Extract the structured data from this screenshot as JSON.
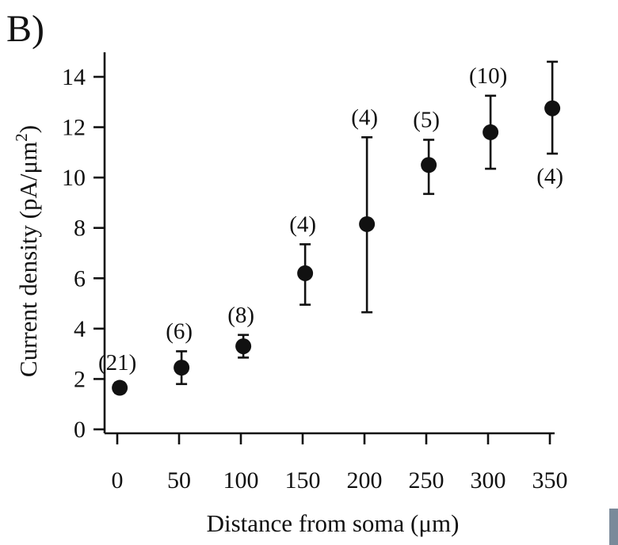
{
  "panel_label": "B)",
  "chart_data": {
    "type": "scatter",
    "title": "",
    "xlabel": "Distance from soma (μm)",
    "ylabel": "Current density (pA/μm2)",
    "ylabel_main": "Current density (pA/μm",
    "ylabel_sup": "2",
    "ylabel_close": ")",
    "x_ticks": [
      "0",
      "50",
      "100",
      "150",
      "200",
      "250",
      "300",
      "350"
    ],
    "y_ticks": [
      "0",
      "2",
      "4",
      "6",
      "8",
      "10",
      "12",
      "14"
    ],
    "xlim": [
      -10,
      365
    ],
    "ylim": [
      -0.2,
      14.3
    ],
    "grid": false,
    "legend": "none",
    "points": [
      {
        "x": 2,
        "y": 1.65,
        "err_low": 1.45,
        "err_high": 1.85,
        "n": "(21)",
        "label_pos": "above"
      },
      {
        "x": 52,
        "y": 2.45,
        "err_low": 1.8,
        "err_high": 3.1,
        "n": "(6)",
        "label_pos": "above"
      },
      {
        "x": 102,
        "y": 3.3,
        "err_low": 2.85,
        "err_high": 3.75,
        "n": "(8)",
        "label_pos": "above"
      },
      {
        "x": 152,
        "y": 6.2,
        "err_low": 4.95,
        "err_high": 7.35,
        "n": "(4)",
        "label_pos": "above"
      },
      {
        "x": 202,
        "y": 8.15,
        "err_low": 4.65,
        "err_high": 11.6,
        "n": "(4)",
        "label_pos": "above"
      },
      {
        "x": 252,
        "y": 10.5,
        "err_low": 9.35,
        "err_high": 11.5,
        "n": "(5)",
        "label_pos": "above"
      },
      {
        "x": 302,
        "y": 11.8,
        "err_low": 10.35,
        "err_high": 13.25,
        "n": "(10)",
        "label_pos": "above"
      },
      {
        "x": 352,
        "y": 12.75,
        "err_low": 10.95,
        "err_high": 14.6,
        "n": "(4)",
        "label_pos": "below"
      }
    ]
  }
}
